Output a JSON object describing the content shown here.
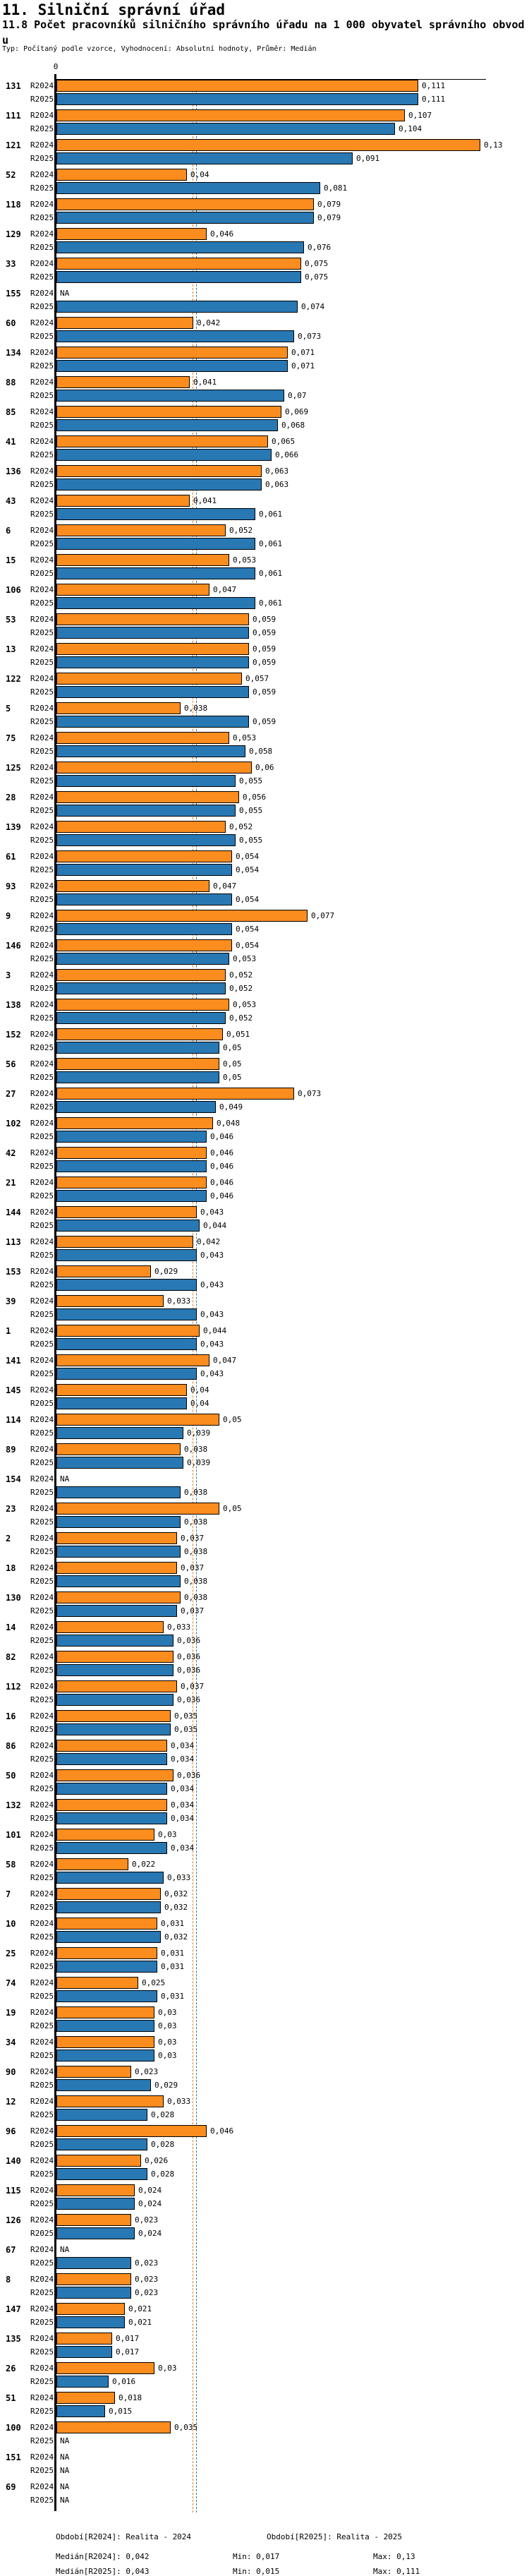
{
  "header": {
    "section_title": "11. Silniční správní úřad",
    "indicator_title": "11.8 Počet pracovníků silničního správního úřadu na 1 000 obyvatel správního obvodu",
    "meta": "Typ: Počítaný podle vzorce, Vyhodnocení: Absolutní hodnoty, Průměr: Medián"
  },
  "chart_data": {
    "type": "bar",
    "orientation": "horizontal",
    "xlabel": "",
    "ylabel": "",
    "xlim": [
      0,
      0.13
    ],
    "axis_zero_label": "0",
    "na_label": "NA",
    "legend_position": "none",
    "grid": false,
    "series_colors": {
      "R2024": "#fb8c1e",
      "R2025": "#2878b4"
    },
    "median_line_colors": {
      "R2024": "#e87e18",
      "R2025": "#2878b4"
    },
    "medians": {
      "R2024": 0.042,
      "R2025": 0.043
    },
    "categories": [
      "131",
      "111",
      "121",
      "52",
      "118",
      "129",
      "33",
      "155",
      "60",
      "134",
      "88",
      "85",
      "41",
      "136",
      "43",
      "6",
      "15",
      "106",
      "53",
      "13",
      "122",
      "5",
      "75",
      "125",
      "28",
      "139",
      "61",
      "93",
      "9",
      "146",
      "3",
      "138",
      "152",
      "56",
      "27",
      "102",
      "42",
      "21",
      "144",
      "113",
      "153",
      "39",
      "1",
      "141",
      "145",
      "114",
      "89",
      "154",
      "23",
      "2",
      "18",
      "130",
      "14",
      "82",
      "112",
      "16",
      "86",
      "50",
      "132",
      "101",
      "58",
      "7",
      "10",
      "25",
      "74",
      "19",
      "34",
      "90",
      "12",
      "96",
      "140",
      "115",
      "126",
      "67",
      "8",
      "147",
      "135",
      "26",
      "51",
      "100",
      "151",
      "69"
    ],
    "series": [
      {
        "name": "R2024",
        "values": [
          0.111,
          0.107,
          0.13,
          0.04,
          0.079,
          0.046,
          0.075,
          null,
          0.042,
          0.071,
          0.041,
          0.069,
          0.065,
          0.063,
          0.041,
          0.052,
          0.053,
          0.047,
          0.059,
          0.059,
          0.057,
          0.038,
          0.053,
          0.06,
          0.056,
          0.052,
          0.054,
          0.047,
          0.077,
          0.054,
          0.052,
          0.053,
          0.051,
          0.05,
          0.073,
          0.048,
          0.046,
          0.046,
          0.043,
          0.042,
          0.029,
          0.033,
          0.044,
          0.047,
          0.04,
          0.05,
          0.038,
          null,
          0.05,
          0.037,
          0.037,
          0.038,
          0.033,
          0.036,
          0.037,
          0.035,
          0.034,
          0.036,
          0.034,
          0.03,
          0.022,
          0.032,
          0.031,
          0.031,
          0.025,
          0.03,
          0.03,
          0.023,
          0.033,
          0.046,
          0.026,
          0.024,
          0.023,
          null,
          0.023,
          0.021,
          0.017,
          0.03,
          0.018,
          0.035,
          null,
          null
        ]
      },
      {
        "name": "R2025",
        "values": [
          0.111,
          0.104,
          0.091,
          0.081,
          0.079,
          0.076,
          0.075,
          0.074,
          0.073,
          0.071,
          0.07,
          0.068,
          0.066,
          0.063,
          0.061,
          0.061,
          0.061,
          0.061,
          0.059,
          0.059,
          0.059,
          0.059,
          0.058,
          0.055,
          0.055,
          0.055,
          0.054,
          0.054,
          0.054,
          0.053,
          0.052,
          0.052,
          0.05,
          0.05,
          0.049,
          0.046,
          0.046,
          0.046,
          0.044,
          0.043,
          0.043,
          0.043,
          0.043,
          0.043,
          0.04,
          0.039,
          0.039,
          0.038,
          0.038,
          0.038,
          0.038,
          0.037,
          0.036,
          0.036,
          0.036,
          0.035,
          0.034,
          0.034,
          0.034,
          0.034,
          0.033,
          0.032,
          0.032,
          0.031,
          0.031,
          0.03,
          0.03,
          0.029,
          0.028,
          0.028,
          0.028,
          0.024,
          0.024,
          0.023,
          0.023,
          0.021,
          0.017,
          0.016,
          0.015,
          null,
          null,
          null
        ]
      }
    ]
  },
  "footer": {
    "period_r2024": "Období[R2024]: Realita - 2024",
    "period_r2025": "Období[R2025]: Realita - 2025",
    "median_r2024": "Medián[R2024]: 0,042",
    "min_r2024": "Min: 0,017",
    "max_r2024": "Max: 0,13",
    "median_r2025": "Medián[R2025]: 0,043",
    "min_r2025": "Min: 0,015",
    "max_r2025": "Max: 0,111"
  }
}
